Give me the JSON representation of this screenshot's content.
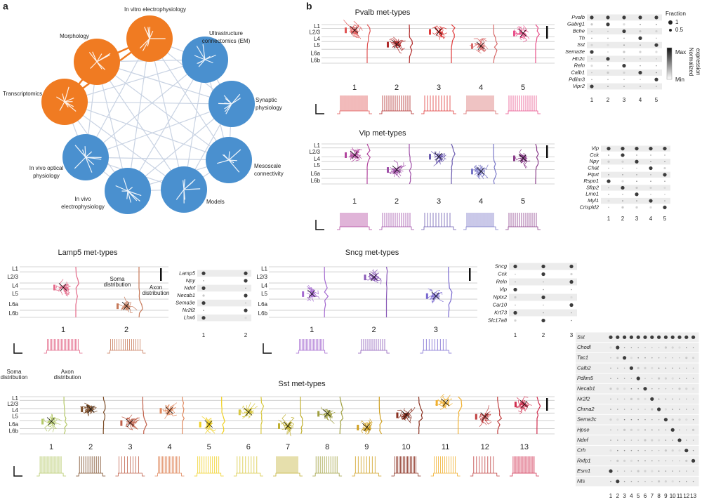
{
  "panel_a": {
    "label": "a",
    "nodes": [
      {
        "label_lines": [
          "In vitro electrophysiology"
        ],
        "color": "#f07b22"
      },
      {
        "label_lines": [
          "Morphology"
        ],
        "color": "#f07b22"
      },
      {
        "label_lines": [
          "Ultrastructure",
          "connectomics (EM)"
        ],
        "color": "#4a90cf"
      },
      {
        "label_lines": [
          "Synaptic",
          "physiology"
        ],
        "color": "#4a90cf"
      },
      {
        "label_lines": [
          "Transcriptomics"
        ],
        "color": "#f07b22"
      },
      {
        "label_lines": [
          "Mesoscale",
          "connectivity"
        ],
        "color": "#4a90cf"
      },
      {
        "label_lines": [
          "In vivo optical",
          "physiology"
        ],
        "color": "#4a90cf"
      },
      {
        "label_lines": [
          "In vivo",
          "electrophysiology"
        ],
        "color": "#4a90cf"
      },
      {
        "label_lines": [
          "Models"
        ],
        "color": "#4a90cf"
      }
    ]
  },
  "panel_b": {
    "label": "b",
    "legend": {
      "fraction_title": "Fraction",
      "fraction_values": [
        1,
        0.5
      ],
      "max": "Max",
      "min": "Min",
      "expression_lines": [
        "Normalized",
        "expression"
      ]
    },
    "panels": [
      {
        "title": "Pvalb met-types",
        "layers": [
          "L1",
          "L2/3",
          "L4",
          "L5",
          "L6a",
          "L6b"
        ],
        "types": [
          1,
          2,
          3,
          4,
          5
        ],
        "colors": [
          "#e05555",
          "#b02a2a",
          "#e03a3a",
          "#d86a6a",
          "#e8508a"
        ],
        "genes": [
          "Pvalb",
          "Gabrg1",
          "Bche",
          "Th",
          "Sst",
          "Sema3e",
          "Htr2c",
          "Reln",
          "Calb1",
          "Pdlim3",
          "Vipr2"
        ],
        "columns": [
          1,
          2,
          3,
          4,
          5
        ]
      },
      {
        "title": "Vip met-types",
        "layers": [
          "L1",
          "L2/3",
          "L4",
          "L5",
          "L6a",
          "L6b"
        ],
        "types": [
          1,
          2,
          3,
          4,
          5
        ],
        "colors": [
          "#b2459e",
          "#a04fa8",
          "#6b5bb0",
          "#7a78c8",
          "#8a3d8a"
        ],
        "genes": [
          "Vip",
          "Cck",
          "Npy",
          "Chat",
          "Ptprt",
          "Rspo1",
          "Sfrp2",
          "Lmo1",
          "Myl1",
          "Crispld2"
        ],
        "columns": [
          1,
          2,
          3,
          4,
          5
        ]
      },
      {
        "title": "Lamp5 met-types",
        "layers": [
          "L1",
          "L2/3",
          "L4",
          "L5",
          "L6a",
          "L6b"
        ],
        "types": [
          1,
          2
        ],
        "colors": [
          "#e46a8a",
          "#c77a5a"
        ],
        "genes": [
          "Lamp5",
          "Npy",
          "Ndnf",
          "Necab1",
          "Sema3e",
          "Nr2f2",
          "Lhx6"
        ],
        "columns": [
          1,
          2
        ],
        "annotations": [
          [
            "Soma",
            "distribution"
          ],
          [
            "Axon",
            "distribution"
          ]
        ]
      },
      {
        "title": "Sncg met-types",
        "layers": [
          "L1",
          "L2/3",
          "L4",
          "L5",
          "L6a",
          "L6b"
        ],
        "types": [
          1,
          2,
          3
        ],
        "colors": [
          "#a46ad0",
          "#8a5ab8",
          "#7a6ad0"
        ],
        "genes": [
          "Sncg",
          "Cck",
          "Reln",
          "Vip",
          "Nptx2",
          "Car10",
          "Krt73",
          "Slc17a8"
        ],
        "columns": [
          1,
          2,
          3
        ]
      },
      {
        "title": "Sst met-types",
        "layers": [
          "L1",
          "L2/3",
          "L4",
          "L5",
          "L6a",
          "L6b"
        ],
        "types": [
          1,
          2,
          3,
          4,
          5,
          6,
          7,
          8,
          9,
          10,
          11,
          12,
          13
        ],
        "colors": [
          "#b5c96a",
          "#7a4a25",
          "#c0604a",
          "#e08a60",
          "#f0d020",
          "#d8c840",
          "#c0b030",
          "#a0a040",
          "#d0a020",
          "#8a3020",
          "#f0b030",
          "#c04040",
          "#d03050"
        ],
        "genes": [
          "Sst",
          "Chodl",
          "Tac1",
          "Calb2",
          "Pdlim5",
          "Necab1",
          "Nr2f2",
          "Chrna2",
          "Sema3c",
          "Hpse",
          "Ndnf",
          "Crh",
          "Rxfp1",
          "Esm1",
          "Nts"
        ],
        "columns": [
          1,
          2,
          3,
          4,
          5,
          6,
          7,
          8,
          9,
          10,
          11,
          12,
          13
        ],
        "annotations": [
          [
            "Soma",
            "distribution"
          ],
          [
            "Axon",
            "distribution"
          ]
        ]
      }
    ]
  }
}
